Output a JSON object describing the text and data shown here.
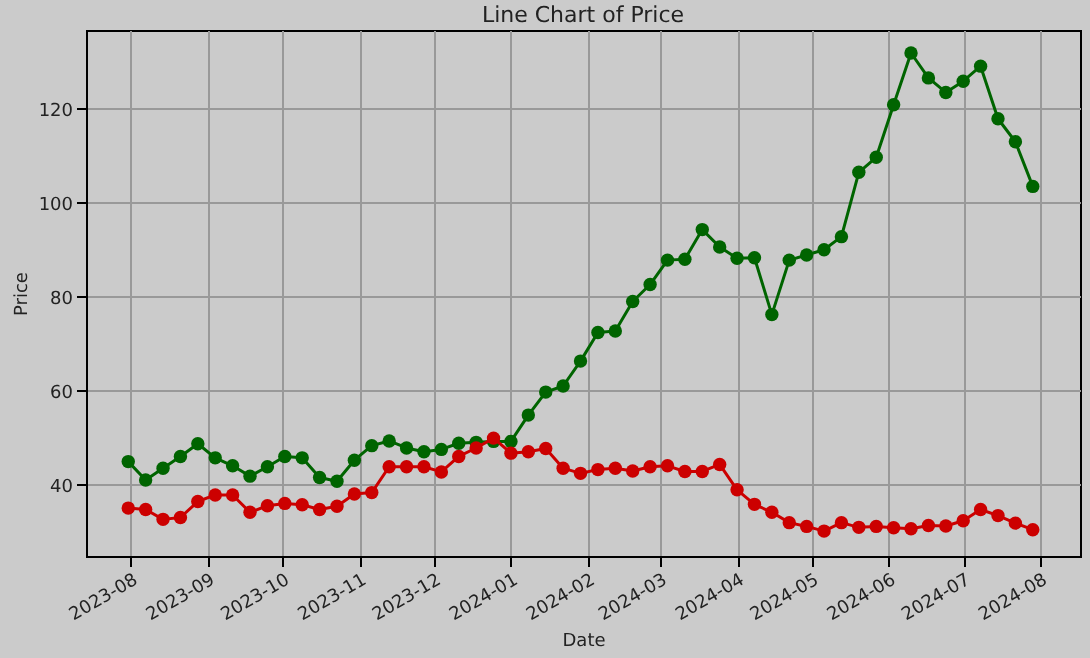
{
  "chart_data": {
    "type": "line",
    "title": "Line Chart of Price",
    "xlabel": "Date",
    "ylabel": "Price",
    "x": [
      "2023-07-31",
      "2023-08-07",
      "2023-08-14",
      "2023-08-21",
      "2023-08-28",
      "2023-09-04",
      "2023-09-11",
      "2023-09-18",
      "2023-09-25",
      "2023-10-02",
      "2023-10-09",
      "2023-10-16",
      "2023-10-23",
      "2023-10-30",
      "2023-11-06",
      "2023-11-13",
      "2023-11-20",
      "2023-11-27",
      "2023-12-04",
      "2023-12-11",
      "2023-12-18",
      "2023-12-25",
      "2024-01-01",
      "2024-01-08",
      "2024-01-15",
      "2024-01-22",
      "2024-01-29",
      "2024-02-05",
      "2024-02-12",
      "2024-02-19",
      "2024-02-26",
      "2024-03-04",
      "2024-03-11",
      "2024-03-18",
      "2024-03-25",
      "2024-04-01",
      "2024-04-08",
      "2024-04-15",
      "2024-04-22",
      "2024-04-29",
      "2024-05-06",
      "2024-05-13",
      "2024-05-20",
      "2024-05-27",
      "2024-06-03",
      "2024-06-10",
      "2024-06-17",
      "2024-06-24",
      "2024-07-01",
      "2024-07-08",
      "2024-07-15",
      "2024-07-22",
      "2024-07-29"
    ],
    "series": [
      {
        "color": "#006400",
        "values": [
          44.9,
          41,
          43.5,
          46,
          48.7,
          45.7,
          44,
          41.8,
          43.8,
          46,
          45.7,
          41.5,
          40.7,
          45.2,
          48.3,
          49.3,
          47.8,
          47,
          47.5,
          48.8,
          49,
          49.2,
          49.2,
          54.8,
          59.7,
          61,
          66.3,
          72.4,
          72.7,
          79,
          82.6,
          87.8,
          88,
          94.3,
          90.6,
          88.2,
          88.3,
          76.2,
          87.8,
          88.9,
          90,
          92.8,
          106.5,
          109.7,
          120.9,
          131.9,
          126.6,
          123.5,
          125.9,
          129.1,
          117.9,
          113,
          103.5
        ]
      },
      {
        "color": "#cc0000",
        "values": [
          35,
          34.7,
          32.6,
          33,
          36.4,
          37.8,
          37.8,
          34.1,
          35.5,
          36,
          35.7,
          34.7,
          35.4,
          38,
          38.3,
          43.8,
          43.8,
          43.8,
          42.7,
          46,
          47.8,
          49.9,
          46.7,
          47,
          47.7,
          43.5,
          42.4,
          43.2,
          43.5,
          42.9,
          43.8,
          44,
          42.8,
          42.8,
          44.3,
          38.9,
          35.8,
          34.1,
          31.9,
          31.1,
          30.1,
          31.9,
          30.9,
          31.1,
          30.8,
          30.6,
          31.3,
          31.2,
          32.3,
          34.7,
          33.4,
          31.8,
          30.4
        ]
      }
    ],
    "xlim": [
      "2023-07-14",
      "2024-08-17"
    ],
    "xticks": [
      {
        "value": "2023-08-01",
        "label": "2023-08"
      },
      {
        "value": "2023-09-01",
        "label": "2023-09"
      },
      {
        "value": "2023-10-01",
        "label": "2023-10"
      },
      {
        "value": "2023-11-01",
        "label": "2023-11"
      },
      {
        "value": "2023-12-01",
        "label": "2023-12"
      },
      {
        "value": "2024-01-01",
        "label": "2024-01"
      },
      {
        "value": "2024-02-01",
        "label": "2024-02"
      },
      {
        "value": "2024-03-01",
        "label": "2024-03"
      },
      {
        "value": "2024-04-01",
        "label": "2024-04"
      },
      {
        "value": "2024-05-01",
        "label": "2024-05"
      },
      {
        "value": "2024-06-01",
        "label": "2024-06"
      },
      {
        "value": "2024-07-01",
        "label": "2024-07"
      },
      {
        "value": "2024-08-01",
        "label": "2024-08"
      }
    ],
    "ylim": [
      24.8,
      136.8
    ],
    "yticks": [
      40,
      60,
      80,
      100,
      120
    ],
    "grid": true,
    "marker": "circle",
    "line_style": "solid"
  }
}
